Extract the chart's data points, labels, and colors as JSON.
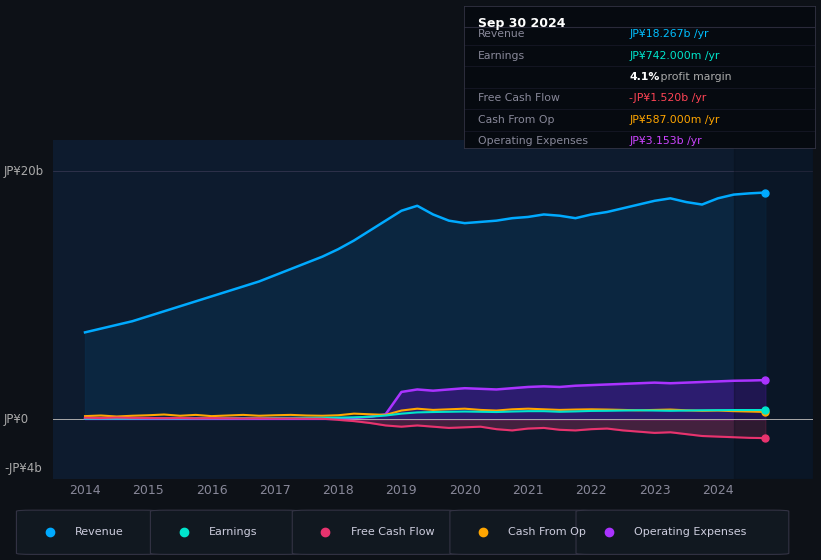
{
  "bg_color": "#0d1117",
  "plot_bg_color": "#0d1b2e",
  "y_label_top": "JP¥20b",
  "y_label_zero": "JP¥0",
  "y_label_bottom": "-JP¥4b",
  "x_ticks": [
    2014,
    2015,
    2016,
    2017,
    2018,
    2019,
    2020,
    2021,
    2022,
    2023,
    2024
  ],
  "ylim": [
    -4.8,
    22.5
  ],
  "xlim": [
    2013.5,
    2025.5
  ],
  "info_box_title": "Sep 30 2024",
  "info_rows": [
    {
      "label": "Revenue",
      "value": "JP¥18.267b /yr",
      "value_color": "#00bfff"
    },
    {
      "label": "Earnings",
      "value": "JP¥742.000m /yr",
      "value_color": "#00e5cc"
    },
    {
      "label": "",
      "value": "4.1%",
      "value_color": "#ffffff",
      "suffix": " profit margin",
      "suffix_color": "#aaaaaa"
    },
    {
      "label": "Free Cash Flow",
      "value": "-JP¥1.520b /yr",
      "value_color": "#ff4455"
    },
    {
      "label": "Cash From Op",
      "value": "JP¥587.000m /yr",
      "value_color": "#ffa500"
    },
    {
      "label": "Operating Expenses",
      "value": "JP¥3.153b /yr",
      "value_color": "#cc44ff"
    }
  ],
  "revenue_color": "#00aaff",
  "earnings_color": "#00e5cc",
  "fcf_color": "#e8336e",
  "cashfromop_color": "#ffa500",
  "opex_color": "#aa33ff",
  "legend": [
    {
      "label": "Revenue",
      "color": "#00aaff"
    },
    {
      "label": "Earnings",
      "color": "#00e5cc"
    },
    {
      "label": "Free Cash Flow",
      "color": "#e8336e"
    },
    {
      "label": "Cash From Op",
      "color": "#ffa500"
    },
    {
      "label": "Operating Expenses",
      "color": "#aa33ff"
    }
  ]
}
